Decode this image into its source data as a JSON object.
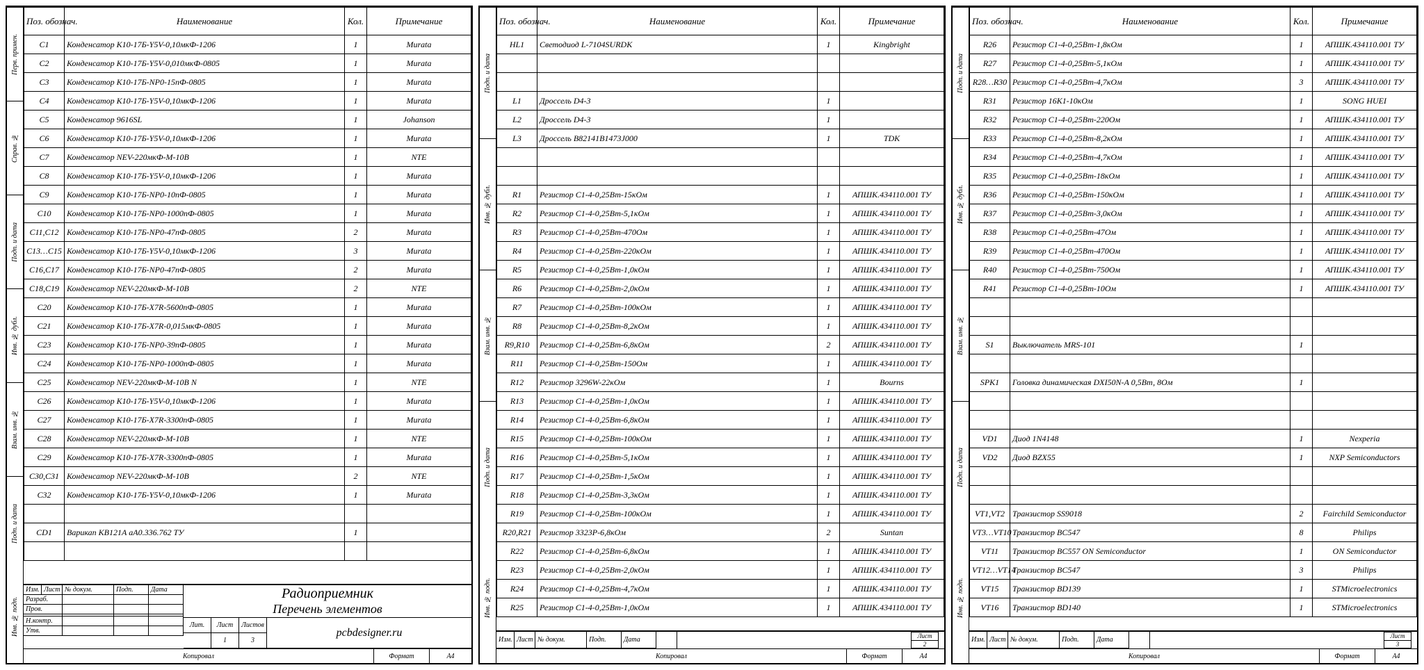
{
  "headers": {
    "pos": "Поз. обознач.",
    "name": "Наименование",
    "qty": "Кол.",
    "note": "Примечание"
  },
  "sidebar_labels": [
    "Перв. примен.",
    "Справ. №",
    "Подп. и дата",
    "Инв. № дубл.",
    "Взам. инв. №",
    "Подп. и дата",
    "Инв. № подп."
  ],
  "sidebar_labels_short": [
    "Подп. и дата",
    "Инв. № дубл.",
    "Взам. инв. №",
    "Подп. и дата",
    "Инв. № подп."
  ],
  "title_block": {
    "cols": [
      "Изм.",
      "Лист",
      "№ докум.",
      "Подп.",
      "Дата"
    ],
    "roles": [
      "Разраб.",
      "Пров.",
      "",
      "Н.контр.",
      "Утв."
    ],
    "main_title": "Радиоприемник",
    "sub_title": "Перечень элементов",
    "company": "pcbdesigner.ru",
    "lit": "Лит.",
    "list": "Лист",
    "lists": "Листов",
    "list_num": "1",
    "lists_num": "3",
    "kopiroval": "Копировал",
    "format": "Формат",
    "format_val": "A4"
  },
  "small_tb": {
    "list": "Лист",
    "page2": "2",
    "page3": "3"
  },
  "page1_rows": [
    {
      "pos": "C1",
      "name": "Конденсатор К10-17Б-Y5V-0,10мкФ-1206",
      "qty": "1",
      "note": "Murata"
    },
    {
      "pos": "C2",
      "name": "Конденсатор К10-17Б-Y5V-0,010мкФ-0805",
      "qty": "1",
      "note": "Murata"
    },
    {
      "pos": "C3",
      "name": "Конденсатор К10-17Б-NP0-15пФ-0805",
      "qty": "1",
      "note": "Murata"
    },
    {
      "pos": "C4",
      "name": "Конденсатор К10-17Б-Y5V-0,10мкФ-1206",
      "qty": "1",
      "note": "Murata"
    },
    {
      "pos": "C5",
      "name": "Конденсатор 9616SL",
      "qty": "1",
      "note": "Johanson"
    },
    {
      "pos": "C6",
      "name": "Конденсатор К10-17Б-Y5V-0,10мкФ-1206",
      "qty": "1",
      "note": "Murata"
    },
    {
      "pos": "C7",
      "name": "Конденсатор NEV-220мкФ-М-10В",
      "qty": "1",
      "note": "NTE"
    },
    {
      "pos": "C8",
      "name": "Конденсатор К10-17Б-Y5V-0,10мкФ-1206",
      "qty": "1",
      "note": "Murata"
    },
    {
      "pos": "C9",
      "name": "Конденсатор К10-17Б-NP0-10пФ-0805",
      "qty": "1",
      "note": "Murata"
    },
    {
      "pos": "C10",
      "name": "Конденсатор К10-17Б-NP0-1000пФ-0805",
      "qty": "1",
      "note": "Murata"
    },
    {
      "pos": "C11,C12",
      "name": "Конденсатор К10-17Б-NP0-47пФ-0805",
      "qty": "2",
      "note": "Murata"
    },
    {
      "pos": "C13…C15",
      "name": "Конденсатор К10-17Б-Y5V-0,10мкФ-1206",
      "qty": "3",
      "note": "Murata"
    },
    {
      "pos": "C16,C17",
      "name": "Конденсатор К10-17Б-NP0-47пФ-0805",
      "qty": "2",
      "note": "Murata"
    },
    {
      "pos": "C18,C19",
      "name": "Конденсатор NEV-220мкФ-М-10В",
      "qty": "2",
      "note": "NTE"
    },
    {
      "pos": "C20",
      "name": "Конденсатор К10-17Б-X7R-5600пФ-0805",
      "qty": "1",
      "note": "Murata"
    },
    {
      "pos": "C21",
      "name": "Конденсатор К10-17Б-X7R-0,015мкФ-0805",
      "qty": "1",
      "note": "Murata"
    },
    {
      "pos": "C23",
      "name": "Конденсатор К10-17Б-NP0-39пФ-0805",
      "qty": "1",
      "note": "Murata"
    },
    {
      "pos": "C24",
      "name": "Конденсатор К10-17Б-NP0-1000пФ-0805",
      "qty": "1",
      "note": "Murata"
    },
    {
      "pos": "C25",
      "name": "Конденсатор NEV-220мкФ-М-10В N",
      "qty": "1",
      "note": "NTE"
    },
    {
      "pos": "C26",
      "name": "Конденсатор К10-17Б-Y5V-0,10мкФ-1206",
      "qty": "1",
      "note": "Murata"
    },
    {
      "pos": "C27",
      "name": "Конденсатор К10-17Б-X7R-3300пФ-0805",
      "qty": "1",
      "note": "Murata"
    },
    {
      "pos": "C28",
      "name": "Конденсатор NEV-220мкФ-М-10В",
      "qty": "1",
      "note": "NTE"
    },
    {
      "pos": "C29",
      "name": "Конденсатор К10-17Б-X7R-3300пФ-0805",
      "qty": "1",
      "note": "Murata"
    },
    {
      "pos": "C30,C31",
      "name": "Конденсатор NEV-220мкФ-М-10В",
      "qty": "2",
      "note": "NTE"
    },
    {
      "pos": "C32",
      "name": "Конденсатор К10-17Б-Y5V-0,10мкФ-1206",
      "qty": "1",
      "note": "Murata"
    },
    {
      "pos": "",
      "name": "",
      "qty": "",
      "note": ""
    },
    {
      "pos": "CD1",
      "name": "Варикап КВ121А аА0.336.762 ТУ",
      "qty": "1",
      "note": ""
    },
    {
      "pos": "",
      "name": "",
      "qty": "",
      "note": ""
    }
  ],
  "page2_rows": [
    {
      "pos": "HL1",
      "name": "Светодиод L-7104SURDK",
      "qty": "1",
      "note": "Kingbright"
    },
    {
      "pos": "",
      "name": "",
      "qty": "",
      "note": ""
    },
    {
      "pos": "",
      "name": "",
      "qty": "",
      "note": ""
    },
    {
      "pos": "L1",
      "name": "Дроссель D4-3",
      "qty": "1",
      "note": ""
    },
    {
      "pos": "L2",
      "name": "Дроссель D4-3",
      "qty": "1",
      "note": ""
    },
    {
      "pos": "L3",
      "name": "Дроссель B82141B1473J000",
      "qty": "1",
      "note": "TDK"
    },
    {
      "pos": "",
      "name": "",
      "qty": "",
      "note": ""
    },
    {
      "pos": "",
      "name": "",
      "qty": "",
      "note": ""
    },
    {
      "pos": "R1",
      "name": "Резистор С1-4-0,25Вт-15кОм",
      "qty": "1",
      "note": "АПШК.434110.001 ТУ"
    },
    {
      "pos": "R2",
      "name": "Резистор С1-4-0,25Вт-5,1кОм",
      "qty": "1",
      "note": "АПШК.434110.001 ТУ"
    },
    {
      "pos": "R3",
      "name": "Резистор С1-4-0,25Вт-470Ом",
      "qty": "1",
      "note": "АПШК.434110.001 ТУ"
    },
    {
      "pos": "R4",
      "name": "Резистор С1-4-0,25Вт-220кОм",
      "qty": "1",
      "note": "АПШК.434110.001 ТУ"
    },
    {
      "pos": "R5",
      "name": "Резистор С1-4-0,25Вт-1,0кОм",
      "qty": "1",
      "note": "АПШК.434110.001 ТУ"
    },
    {
      "pos": "R6",
      "name": "Резистор С1-4-0,25Вт-2,0кОм",
      "qty": "1",
      "note": "АПШК.434110.001 ТУ"
    },
    {
      "pos": "R7",
      "name": "Резистор С1-4-0,25Вт-100кОм",
      "qty": "1",
      "note": "АПШК.434110.001 ТУ"
    },
    {
      "pos": "R8",
      "name": "Резистор С1-4-0,25Вт-8,2кОм",
      "qty": "1",
      "note": "АПШК.434110.001 ТУ"
    },
    {
      "pos": "R9,R10",
      "name": "Резистор С1-4-0,25Вт-6,8кОм",
      "qty": "2",
      "note": "АПШК.434110.001 ТУ"
    },
    {
      "pos": "R11",
      "name": "Резистор С1-4-0,25Вт-150Ом",
      "qty": "1",
      "note": "АПШК.434110.001 ТУ"
    },
    {
      "pos": "R12",
      "name": "Резистор 3296W-22кОм",
      "qty": "1",
      "note": "Bourns"
    },
    {
      "pos": "R13",
      "name": "Резистор С1-4-0,25Вт-1,0кОм",
      "qty": "1",
      "note": "АПШК.434110.001 ТУ"
    },
    {
      "pos": "R14",
      "name": "Резистор С1-4-0,25Вт-6,8кОм",
      "qty": "1",
      "note": "АПШК.434110.001 ТУ"
    },
    {
      "pos": "R15",
      "name": "Резистор С1-4-0,25Вт-100кОм",
      "qty": "1",
      "note": "АПШК.434110.001 ТУ"
    },
    {
      "pos": "R16",
      "name": "Резистор С1-4-0,25Вт-5,1кОм",
      "qty": "1",
      "note": "АПШК.434110.001 ТУ"
    },
    {
      "pos": "R17",
      "name": "Резистор С1-4-0,25Вт-1,5кОм",
      "qty": "1",
      "note": "АПШК.434110.001 ТУ"
    },
    {
      "pos": "R18",
      "name": "Резистор С1-4-0,25Вт-3,3кОм",
      "qty": "1",
      "note": "АПШК.434110.001 ТУ"
    },
    {
      "pos": "R19",
      "name": "Резистор С1-4-0,25Вт-100кОм",
      "qty": "1",
      "note": "АПШК.434110.001 ТУ"
    },
    {
      "pos": "R20,R21",
      "name": "Резистор 3323P-6,8кОм",
      "qty": "2",
      "note": "Suntan"
    },
    {
      "pos": "R22",
      "name": "Резистор С1-4-0,25Вт-6,8кОм",
      "qty": "1",
      "note": "АПШК.434110.001 ТУ"
    },
    {
      "pos": "R23",
      "name": "Резистор С1-4-0,25Вт-2,0кОм",
      "qty": "1",
      "note": "АПШК.434110.001 ТУ"
    },
    {
      "pos": "R24",
      "name": "Резистор С1-4-0,25Вт-4,7кОм",
      "qty": "1",
      "note": "АПШК.434110.001 ТУ"
    },
    {
      "pos": "R25",
      "name": "Резистор С1-4-0,25Вт-1,0кОм",
      "qty": "1",
      "note": "АПШК.434110.001 ТУ"
    }
  ],
  "page3_rows": [
    {
      "pos": "R26",
      "name": "Резистор С1-4-0,25Вт-1,8кОм",
      "qty": "1",
      "note": "АПШК.434110.001 ТУ"
    },
    {
      "pos": "R27",
      "name": "Резистор С1-4-0,25Вт-5,1кОм",
      "qty": "1",
      "note": "АПШК.434110.001 ТУ"
    },
    {
      "pos": "R28…R30",
      "name": "Резистор С1-4-0,25Вт-4,7кОм",
      "qty": "3",
      "note": "АПШК.434110.001 ТУ"
    },
    {
      "pos": "R31",
      "name": "Резистор 16K1-10кОм",
      "qty": "1",
      "note": "SONG HUEI"
    },
    {
      "pos": "R32",
      "name": "Резистор С1-4-0,25Вт-220Ом",
      "qty": "1",
      "note": "АПШК.434110.001 ТУ"
    },
    {
      "pos": "R33",
      "name": "Резистор С1-4-0,25Вт-8,2кОм",
      "qty": "1",
      "note": "АПШК.434110.001 ТУ"
    },
    {
      "pos": "R34",
      "name": "Резистор С1-4-0,25Вт-4,7кОм",
      "qty": "1",
      "note": "АПШК.434110.001 ТУ"
    },
    {
      "pos": "R35",
      "name": "Резистор С1-4-0,25Вт-18кОм",
      "qty": "1",
      "note": "АПШК.434110.001 ТУ"
    },
    {
      "pos": "R36",
      "name": "Резистор С1-4-0,25Вт-150кОм",
      "qty": "1",
      "note": "АПШК.434110.001 ТУ"
    },
    {
      "pos": "R37",
      "name": "Резистор С1-4-0,25Вт-3,0кОм",
      "qty": "1",
      "note": "АПШК.434110.001 ТУ"
    },
    {
      "pos": "R38",
      "name": "Резистор С1-4-0,25Вт-47Ом",
      "qty": "1",
      "note": "АПШК.434110.001 ТУ"
    },
    {
      "pos": "R39",
      "name": "Резистор С1-4-0,25Вт-470Ом",
      "qty": "1",
      "note": "АПШК.434110.001 ТУ"
    },
    {
      "pos": "R40",
      "name": "Резистор С1-4-0,25Вт-750Ом",
      "qty": "1",
      "note": "АПШК.434110.001 ТУ"
    },
    {
      "pos": "R41",
      "name": "Резистор С1-4-0,25Вт-10Ом",
      "qty": "1",
      "note": "АПШК.434110.001 ТУ"
    },
    {
      "pos": "",
      "name": "",
      "qty": "",
      "note": ""
    },
    {
      "pos": "",
      "name": "",
      "qty": "",
      "note": ""
    },
    {
      "pos": "S1",
      "name": "Выключатель MRS-101",
      "qty": "1",
      "note": ""
    },
    {
      "pos": "",
      "name": "",
      "qty": "",
      "note": ""
    },
    {
      "pos": "SPK1",
      "name": "Головка динамическая DXI50N-A 0,5Вт, 8Ом",
      "qty": "1",
      "note": ""
    },
    {
      "pos": "",
      "name": "",
      "qty": "",
      "note": ""
    },
    {
      "pos": "",
      "name": "",
      "qty": "",
      "note": ""
    },
    {
      "pos": "VD1",
      "name": "Диод 1N4148",
      "qty": "1",
      "note": "Nexperia"
    },
    {
      "pos": "VD2",
      "name": "Диод BZX55",
      "qty": "1",
      "note": "NXP Semiconductors"
    },
    {
      "pos": "",
      "name": "",
      "qty": "",
      "note": ""
    },
    {
      "pos": "",
      "name": "",
      "qty": "",
      "note": ""
    },
    {
      "pos": "VT1,VT2",
      "name": "Транзистор SS9018",
      "qty": "2",
      "note": "Fairchild Semiconductor"
    },
    {
      "pos": "VT3…VT10",
      "name": "Транзистор BC547",
      "qty": "8",
      "note": "Philips"
    },
    {
      "pos": "VT11",
      "name": "Транзистор BC557 ON Semiconductor",
      "qty": "1",
      "note": "ON Semiconductor"
    },
    {
      "pos": "VT12…VT14",
      "name": "Транзистор BC547",
      "qty": "3",
      "note": "Philips"
    },
    {
      "pos": "VT15",
      "name": "Транзистор BD139",
      "qty": "1",
      "note": "STMicroelectronics"
    },
    {
      "pos": "VT16",
      "name": "Транзистор BD140",
      "qty": "1",
      "note": "STMicroelectronics"
    }
  ]
}
